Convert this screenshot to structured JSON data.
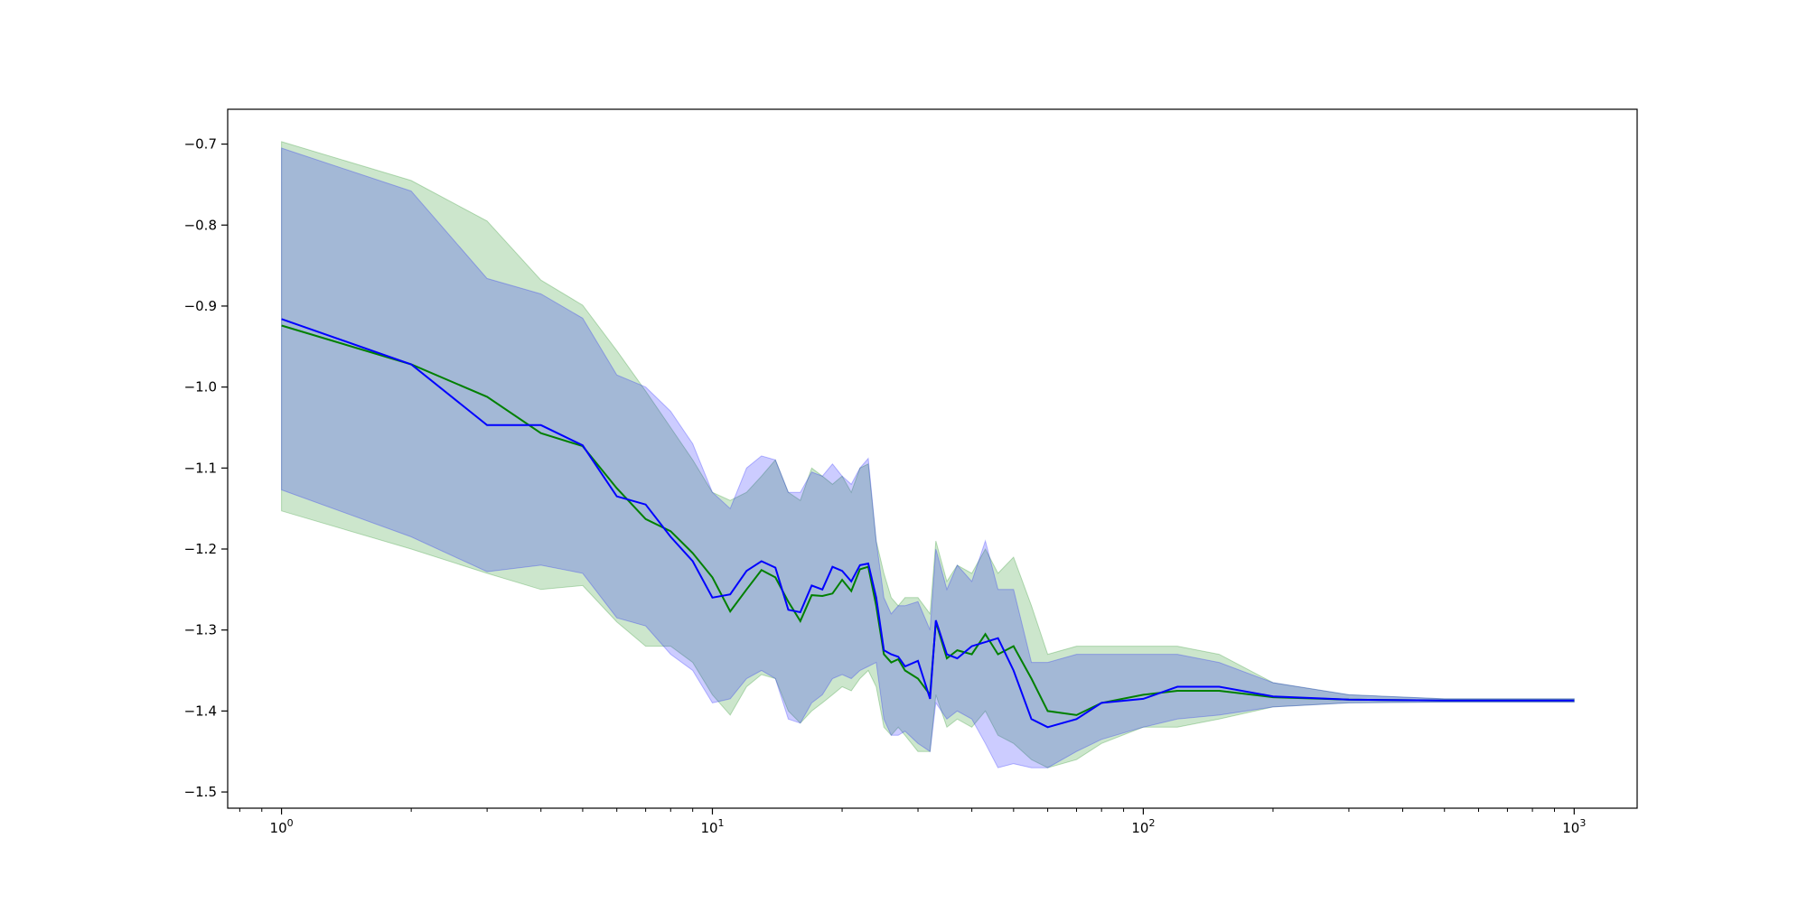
{
  "chart_data": {
    "type": "line",
    "title": "",
    "xlabel": "",
    "ylabel": "",
    "xscale": "log",
    "xlim": [
      0.75,
      1400
    ],
    "ylim": [
      -1.52,
      -0.657
    ],
    "grid": false,
    "legend": "none",
    "xticks": [
      {
        "value": 1,
        "label": "10",
        "exp": "0"
      },
      {
        "value": 10,
        "label": "10",
        "exp": "1"
      },
      {
        "value": 100,
        "label": "10",
        "exp": "2"
      },
      {
        "value": 1000,
        "label": "10",
        "exp": "3"
      }
    ],
    "yticks": [
      {
        "value": -0.7,
        "label": "−0.7"
      },
      {
        "value": -0.8,
        "label": "−0.8"
      },
      {
        "value": -0.9,
        "label": "−0.9"
      },
      {
        "value": -1.0,
        "label": "−1.0"
      },
      {
        "value": -1.1,
        "label": "−1.1"
      },
      {
        "value": -1.2,
        "label": "−1.2"
      },
      {
        "value": -1.3,
        "label": "−1.3"
      },
      {
        "value": -1.4,
        "label": "−1.4"
      },
      {
        "value": -1.5,
        "label": "−1.5"
      }
    ],
    "series": [
      {
        "color": "#008000",
        "band_color": "#008000",
        "band_opacity": 0.2,
        "x": [
          1,
          2,
          3,
          4,
          5,
          6,
          7,
          8,
          9,
          10,
          11,
          12,
          13,
          14,
          15,
          16,
          17,
          18,
          19,
          20,
          21,
          22,
          23,
          24,
          25,
          26,
          27,
          28,
          30,
          32,
          33,
          35,
          37,
          40,
          43,
          46,
          50,
          55,
          60,
          70,
          80,
          100,
          120,
          150,
          200,
          300,
          500,
          1000
        ],
        "y": [
          -0.924,
          -0.972,
          -1.012,
          -1.057,
          -1.073,
          -1.125,
          -1.163,
          -1.178,
          -1.205,
          -1.235,
          -1.277,
          -1.25,
          -1.226,
          -1.235,
          -1.265,
          -1.289,
          -1.257,
          -1.258,
          -1.255,
          -1.238,
          -1.252,
          -1.225,
          -1.222,
          -1.27,
          -1.33,
          -1.34,
          -1.336,
          -1.35,
          -1.36,
          -1.38,
          -1.29,
          -1.335,
          -1.325,
          -1.33,
          -1.305,
          -1.33,
          -1.32,
          -1.36,
          -1.4,
          -1.405,
          -1.39,
          -1.38,
          -1.375,
          -1.375,
          -1.383,
          -1.386,
          -1.387,
          -1.387
        ],
        "upper": [
          -0.697,
          -0.745,
          -0.795,
          -0.868,
          -0.899,
          -0.955,
          -1.005,
          -1.05,
          -1.09,
          -1.13,
          -1.14,
          -1.13,
          -1.11,
          -1.09,
          -1.13,
          -1.14,
          -1.1,
          -1.11,
          -1.12,
          -1.11,
          -1.13,
          -1.1,
          -1.095,
          -1.19,
          -1.23,
          -1.26,
          -1.27,
          -1.26,
          -1.26,
          -1.28,
          -1.19,
          -1.24,
          -1.22,
          -1.23,
          -1.2,
          -1.23,
          -1.21,
          -1.27,
          -1.33,
          -1.32,
          -1.32,
          -1.32,
          -1.32,
          -1.33,
          -1.365,
          -1.38,
          -1.385,
          -1.385
        ],
        "lower": [
          -1.153,
          -1.2,
          -1.23,
          -1.25,
          -1.245,
          -1.29,
          -1.32,
          -1.32,
          -1.34,
          -1.38,
          -1.405,
          -1.37,
          -1.355,
          -1.36,
          -1.4,
          -1.415,
          -1.4,
          -1.39,
          -1.38,
          -1.37,
          -1.375,
          -1.36,
          -1.35,
          -1.37,
          -1.42,
          -1.43,
          -1.42,
          -1.43,
          -1.45,
          -1.45,
          -1.38,
          -1.42,
          -1.41,
          -1.42,
          -1.4,
          -1.43,
          -1.44,
          -1.46,
          -1.47,
          -1.46,
          -1.44,
          -1.42,
          -1.42,
          -1.41,
          -1.395,
          -1.39,
          -1.389,
          -1.389
        ]
      },
      {
        "color": "#0000ff",
        "band_color": "#0000ff",
        "band_opacity": 0.2,
        "x": [
          1,
          2,
          3,
          4,
          5,
          6,
          7,
          8,
          9,
          10,
          11,
          12,
          13,
          14,
          15,
          16,
          17,
          18,
          19,
          20,
          21,
          22,
          23,
          24,
          25,
          26,
          27,
          28,
          30,
          32,
          33,
          35,
          37,
          40,
          43,
          46,
          50,
          55,
          60,
          70,
          80,
          100,
          120,
          150,
          200,
          300,
          500,
          1000
        ],
        "y": [
          -0.916,
          -0.972,
          -1.047,
          -1.047,
          -1.072,
          -1.135,
          -1.145,
          -1.185,
          -1.215,
          -1.26,
          -1.256,
          -1.227,
          -1.215,
          -1.223,
          -1.275,
          -1.278,
          -1.245,
          -1.25,
          -1.222,
          -1.227,
          -1.24,
          -1.22,
          -1.218,
          -1.26,
          -1.325,
          -1.33,
          -1.333,
          -1.345,
          -1.338,
          -1.385,
          -1.288,
          -1.33,
          -1.335,
          -1.32,
          -1.315,
          -1.31,
          -1.35,
          -1.41,
          -1.42,
          -1.41,
          -1.39,
          -1.385,
          -1.37,
          -1.37,
          -1.382,
          -1.386,
          -1.387,
          -1.387
        ],
        "upper": [
          -0.705,
          -0.758,
          -0.866,
          -0.885,
          -0.915,
          -0.985,
          -1.0,
          -1.03,
          -1.07,
          -1.13,
          -1.15,
          -1.1,
          -1.085,
          -1.09,
          -1.13,
          -1.13,
          -1.105,
          -1.11,
          -1.095,
          -1.11,
          -1.12,
          -1.1,
          -1.088,
          -1.19,
          -1.26,
          -1.28,
          -1.27,
          -1.27,
          -1.265,
          -1.3,
          -1.2,
          -1.25,
          -1.22,
          -1.24,
          -1.19,
          -1.25,
          -1.25,
          -1.34,
          -1.34,
          -1.33,
          -1.33,
          -1.33,
          -1.33,
          -1.34,
          -1.365,
          -1.38,
          -1.385,
          -1.385
        ],
        "lower": [
          -1.127,
          -1.185,
          -1.228,
          -1.22,
          -1.23,
          -1.285,
          -1.295,
          -1.33,
          -1.35,
          -1.39,
          -1.385,
          -1.36,
          -1.35,
          -1.36,
          -1.41,
          -1.415,
          -1.39,
          -1.38,
          -1.36,
          -1.355,
          -1.36,
          -1.35,
          -1.345,
          -1.34,
          -1.41,
          -1.43,
          -1.43,
          -1.425,
          -1.44,
          -1.45,
          -1.39,
          -1.41,
          -1.4,
          -1.41,
          -1.44,
          -1.47,
          -1.465,
          -1.47,
          -1.47,
          -1.45,
          -1.435,
          -1.42,
          -1.41,
          -1.405,
          -1.395,
          -1.39,
          -1.389,
          -1.389
        ]
      }
    ]
  }
}
